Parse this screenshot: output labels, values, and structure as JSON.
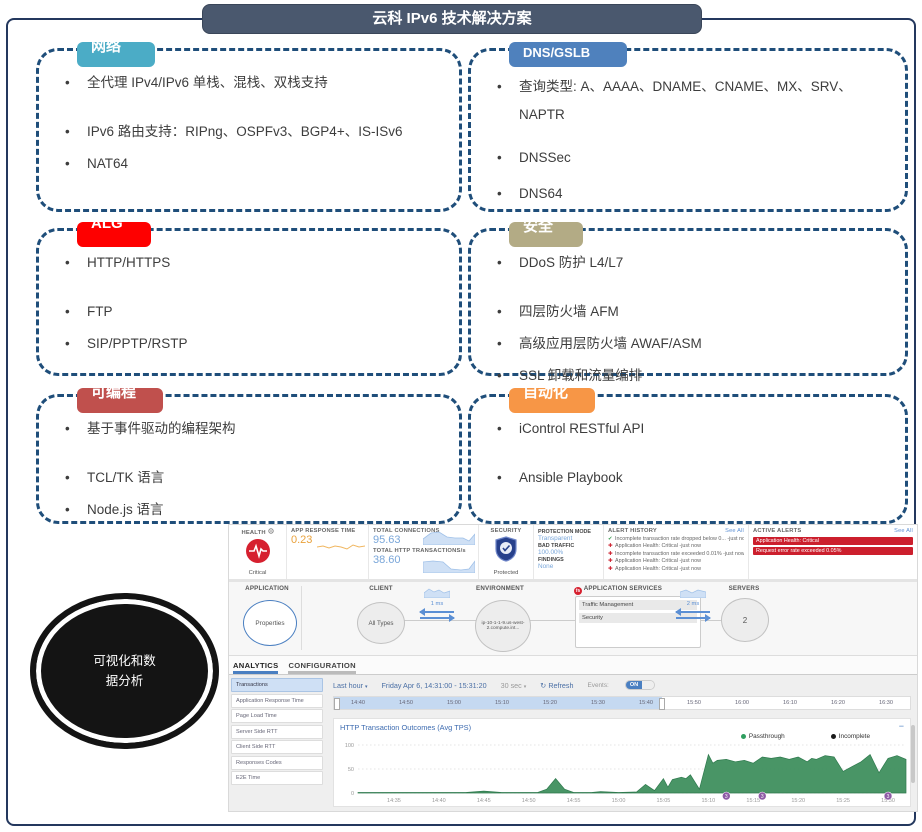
{
  "slide": {
    "title": "云科 IPv6 技术解决方案"
  },
  "boxes": [
    {
      "label": "网络",
      "color": "#4bacc6",
      "items": [
        "全代理 IPv4/IPv6 单栈、混栈、双栈支持",
        "IPv6 路由支持：RIPng、OSPFv3、BGP4+、IS-ISv6",
        "NAT64"
      ]
    },
    {
      "label": "DNS/GSLB",
      "color": "#4f81bd",
      "items": [
        "查询类型: A、AAAA、DNAME、CNAME、MX、SRV、NAPTR",
        "DNSSec",
        "DNS64"
      ]
    },
    {
      "label": "ALG",
      "color": "#fe0000",
      "items": [
        "HTTP/HTTPS",
        "FTP",
        "SIP/PPTP/RSTP"
      ]
    },
    {
      "label": "安全",
      "color": "#b3ab85",
      "items": [
        "DDoS 防护 L4/L7",
        "四层防火墙 AFM",
        "高级应用层防火墙 AWAF/ASM",
        "SSL 卸载和流量编排"
      ]
    },
    {
      "label": "可编程",
      "color": "#c0504d",
      "items": [
        "基于事件驱动的编程架构",
        "TCL/TK 语言",
        "Node.js 语言"
      ]
    },
    {
      "label": "自动化",
      "color": "#f79646",
      "items": [
        "iControl RESTful API",
        "Ansible Playbook"
      ]
    }
  ],
  "ellipse": {
    "text": "可视化和数据分析"
  },
  "dashboard": {
    "health": {
      "label": "HEALTH",
      "status": "Critical"
    },
    "app_response": {
      "label": "APP RESPONSE TIME",
      "value": "0.23"
    },
    "connections": {
      "label": "TOTAL CONNECTIONS",
      "value": "95.63"
    },
    "transactions": {
      "label": "TOTAL HTTP TRANSACTIONS/s",
      "value": "38.60"
    },
    "security": {
      "label": "SECURITY",
      "status": "Protected"
    },
    "protection": {
      "mode_label": "PROTECTION MODE",
      "mode_value": "Transparent",
      "bad_label": "BAD TRAFFIC",
      "bad_value": "100.00%",
      "findings_label": "FINDINGS",
      "findings_value": "None"
    },
    "alert_history": {
      "title": "ALERT HISTORY",
      "see_all": "See All",
      "items": [
        {
          "icon": "ok",
          "text": "Incomplete transaction rate dropped below 0... -just now"
        },
        {
          "icon": "alert",
          "text": "Application Health: Critical -just now"
        },
        {
          "icon": "alert",
          "text": "Incomplete transaction rate exceeded 0.01% -just now"
        },
        {
          "icon": "alert",
          "text": "Application Health: Critical -just now"
        },
        {
          "icon": "alert",
          "text": "Application Health: Critical -just now"
        }
      ]
    },
    "active_alerts": {
      "title": "ACTIVE ALERTS",
      "see_all": "See All",
      "items": [
        "Application Health: Critical",
        "Request error rate exceeded 0.05%"
      ]
    },
    "topology": {
      "application_label": "APPLICATION",
      "application_node": "Properties",
      "client_label": "CLIENT",
      "client_node": "All Types",
      "latency1": "1 ms",
      "environment_label": "ENVIRONMENT",
      "environment_node": "ip-10-1-1-9.us-west-2.compute.int...",
      "services_label": "APPLICATION SERVICES",
      "services_logo": "f5",
      "services_rows": [
        "Traffic Management",
        "Security"
      ],
      "latency2": "2 ms",
      "servers_label": "SERVERS",
      "servers_node": "2"
    },
    "tabs": [
      {
        "label": "ANALYTICS",
        "active": true
      },
      {
        "label": "CONFIGURATION",
        "active": false
      }
    ],
    "sidebar": [
      "Transactions",
      "Application Response Time",
      "Page Load Time",
      "Server Side RTT",
      "Client Side RTT",
      "Responses Codes",
      "E2E Time"
    ],
    "toolbar": {
      "range": "Last hour",
      "date_range": "Friday Apr 6, 14:31:00 - 15:31:20",
      "interval": "30 sec",
      "refresh": "Refresh",
      "events_label": "Events:",
      "events_state": "ON"
    },
    "timeline_ticks": [
      "14:40",
      "14:50",
      "15:00",
      "15:10",
      "15:20",
      "15:30",
      "15:40",
      "15:50",
      "16:00",
      "16:10",
      "16:20",
      "16:30"
    ]
  },
  "chart_data": {
    "type": "area",
    "title": "HTTP Transaction Outcomes (Avg TPS)",
    "x_start": "14:31",
    "x_end": "15:32",
    "x_span_minutes": 61,
    "ylim": [
      0,
      100
    ],
    "yticks": [
      0,
      50,
      100
    ],
    "xticks": [
      "14:35",
      "14:40",
      "14:45",
      "14:50",
      "14:55",
      "15:00",
      "15:05",
      "15:10",
      "15:15",
      "15:20",
      "15:25",
      "15:30"
    ],
    "legend": [
      {
        "name": "Passthrough",
        "color": "#2f9e5f"
      },
      {
        "name": "Incomplete",
        "color": "#1a1a1a"
      }
    ],
    "series": [
      {
        "name": "Passthrough",
        "points": [
          [
            0,
            1
          ],
          [
            6,
            1
          ],
          [
            12,
            1
          ],
          [
            14,
            4
          ],
          [
            16,
            1
          ],
          [
            20,
            1
          ],
          [
            21,
            8
          ],
          [
            22,
            30
          ],
          [
            23,
            8
          ],
          [
            24,
            1
          ],
          [
            26,
            1
          ],
          [
            27,
            3
          ],
          [
            29,
            1
          ],
          [
            31,
            2
          ],
          [
            32,
            18
          ],
          [
            33,
            5
          ],
          [
            34,
            30
          ],
          [
            34.5,
            12
          ],
          [
            35,
            28
          ],
          [
            36,
            33
          ],
          [
            36.5,
            30
          ],
          [
            37,
            38
          ],
          [
            38,
            8
          ],
          [
            39,
            80
          ],
          [
            39.5,
            62
          ],
          [
            40,
            68
          ],
          [
            41,
            70
          ],
          [
            42,
            65
          ],
          [
            43,
            68
          ],
          [
            44,
            62
          ],
          [
            45,
            75
          ],
          [
            46,
            72
          ],
          [
            47,
            75
          ],
          [
            48,
            70
          ],
          [
            49,
            75
          ],
          [
            50,
            65
          ],
          [
            50.5,
            72
          ],
          [
            51,
            70
          ],
          [
            52,
            78
          ],
          [
            53,
            75
          ],
          [
            54,
            45
          ],
          [
            55,
            55
          ],
          [
            56,
            65
          ],
          [
            57,
            80
          ],
          [
            58,
            42
          ],
          [
            59,
            72
          ],
          [
            60,
            78
          ],
          [
            61,
            70
          ]
        ]
      }
    ],
    "events": [
      {
        "t": 41,
        "time": "15:12",
        "label": "3"
      },
      {
        "t": 45,
        "time": "15:16",
        "label": "3"
      },
      {
        "t": 59,
        "time": "15:30",
        "label": "3"
      }
    ]
  }
}
